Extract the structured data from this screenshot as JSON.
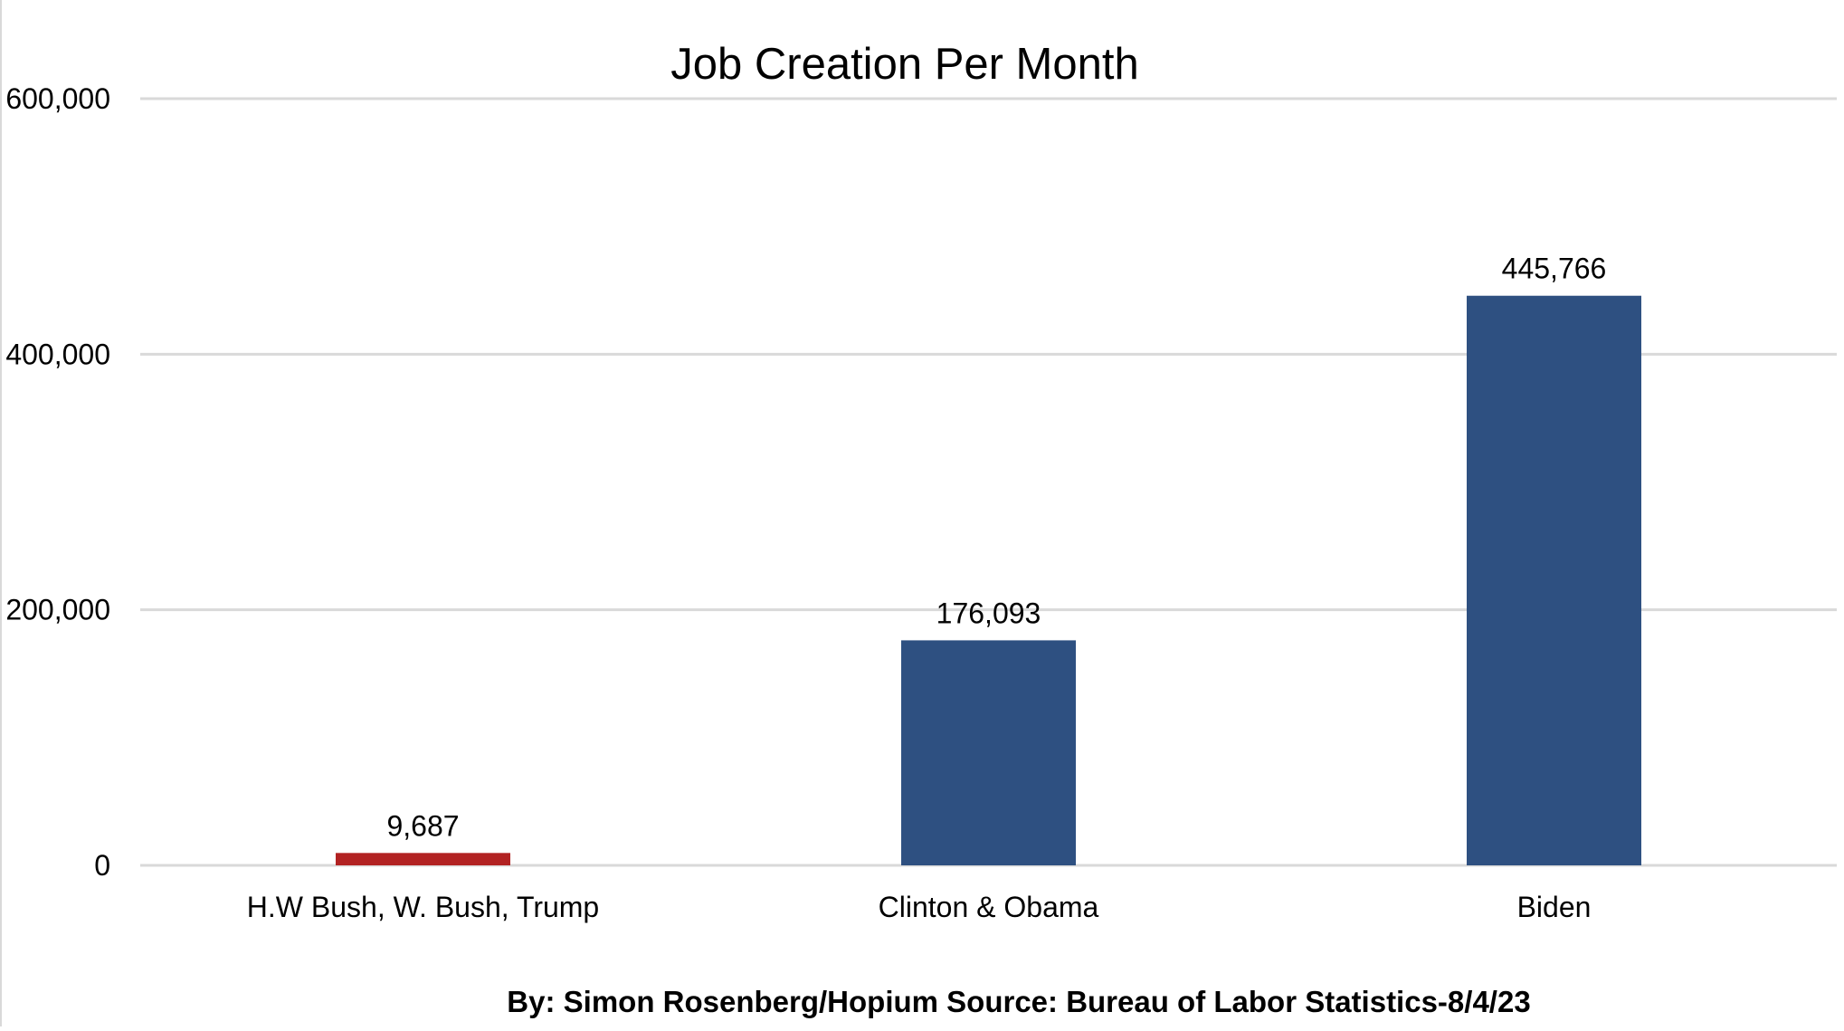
{
  "chart_data": {
    "type": "bar",
    "title": "Job Creation Per Month",
    "categories": [
      "H.W Bush, W. Bush, Trump",
      "Clinton & Obama",
      "Biden"
    ],
    "values": [
      9687,
      176093,
      445766
    ],
    "data_labels": [
      "9,687",
      "176,093",
      "445,766"
    ],
    "bar_colors": [
      "#B22222",
      "#2E5081",
      "#2E5081"
    ],
    "ylim": [
      0,
      600000
    ],
    "yticks": [
      0,
      200000,
      400000,
      600000
    ],
    "ytick_labels": [
      "0",
      "200,000",
      "400,000",
      "600,000"
    ],
    "xlabel": "",
    "ylabel": "",
    "grid": true,
    "legend": "none",
    "footer": "By: Simon Rosenberg/Hopium Source: Bureau of Labor Statistics-8/4/23"
  },
  "colors": {
    "grid": "#d9d9d9",
    "text": "#000000",
    "background": "#ffffff"
  }
}
